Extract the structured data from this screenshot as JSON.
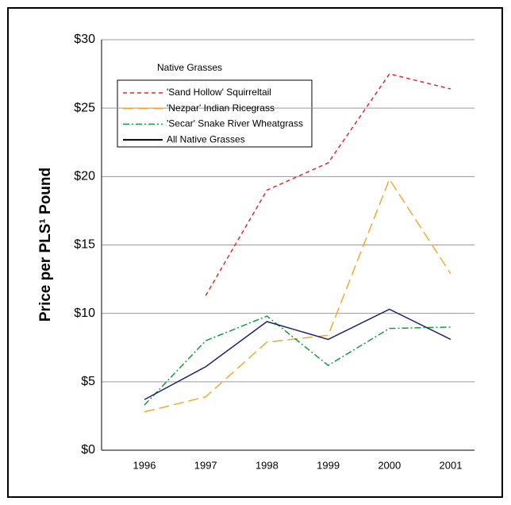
{
  "chart_data": {
    "type": "line",
    "ylabel": "Price per PLS¹ Pound",
    "legend_title": "Native Grasses",
    "categories": [
      "1996",
      "1997",
      "1998",
      "1999",
      "2000",
      "2001"
    ],
    "series": [
      {
        "name": "'Sand Hollow' Squirreltail",
        "color": "#e8262b",
        "dash": "5,4",
        "values": [
          null,
          11.3,
          19.0,
          21.0,
          27.5,
          26.4
        ]
      },
      {
        "name": "'Nezpar' Indian Ricegrass",
        "color": "#f4a833",
        "dash": "13,6",
        "values": [
          2.8,
          3.9,
          7.9,
          8.4,
          19.8,
          12.9
        ]
      },
      {
        "name": "'Secar' Snake River Wheatgrass",
        "color": "#1a9a3e",
        "dash": "8,3,2,3",
        "values": [
          3.3,
          8.0,
          9.8,
          6.2,
          8.9,
          9.0
        ]
      },
      {
        "name": "All Native Grasses",
        "color": "#1e2470",
        "dash": "none",
        "values": [
          3.7,
          6.1,
          9.4,
          8.1,
          10.3,
          8.1
        ]
      }
    ],
    "ylim": [
      0,
      30
    ],
    "yticks": [
      {
        "value": 0,
        "label": "$0"
      },
      {
        "value": 5,
        "label": "$5"
      },
      {
        "value": 10,
        "label": "$10"
      },
      {
        "value": 15,
        "label": "$15"
      },
      {
        "value": 20,
        "label": "$20"
      },
      {
        "value": 25,
        "label": "$25"
      },
      {
        "value": 30,
        "label": "$30"
      }
    ],
    "grid": true
  }
}
